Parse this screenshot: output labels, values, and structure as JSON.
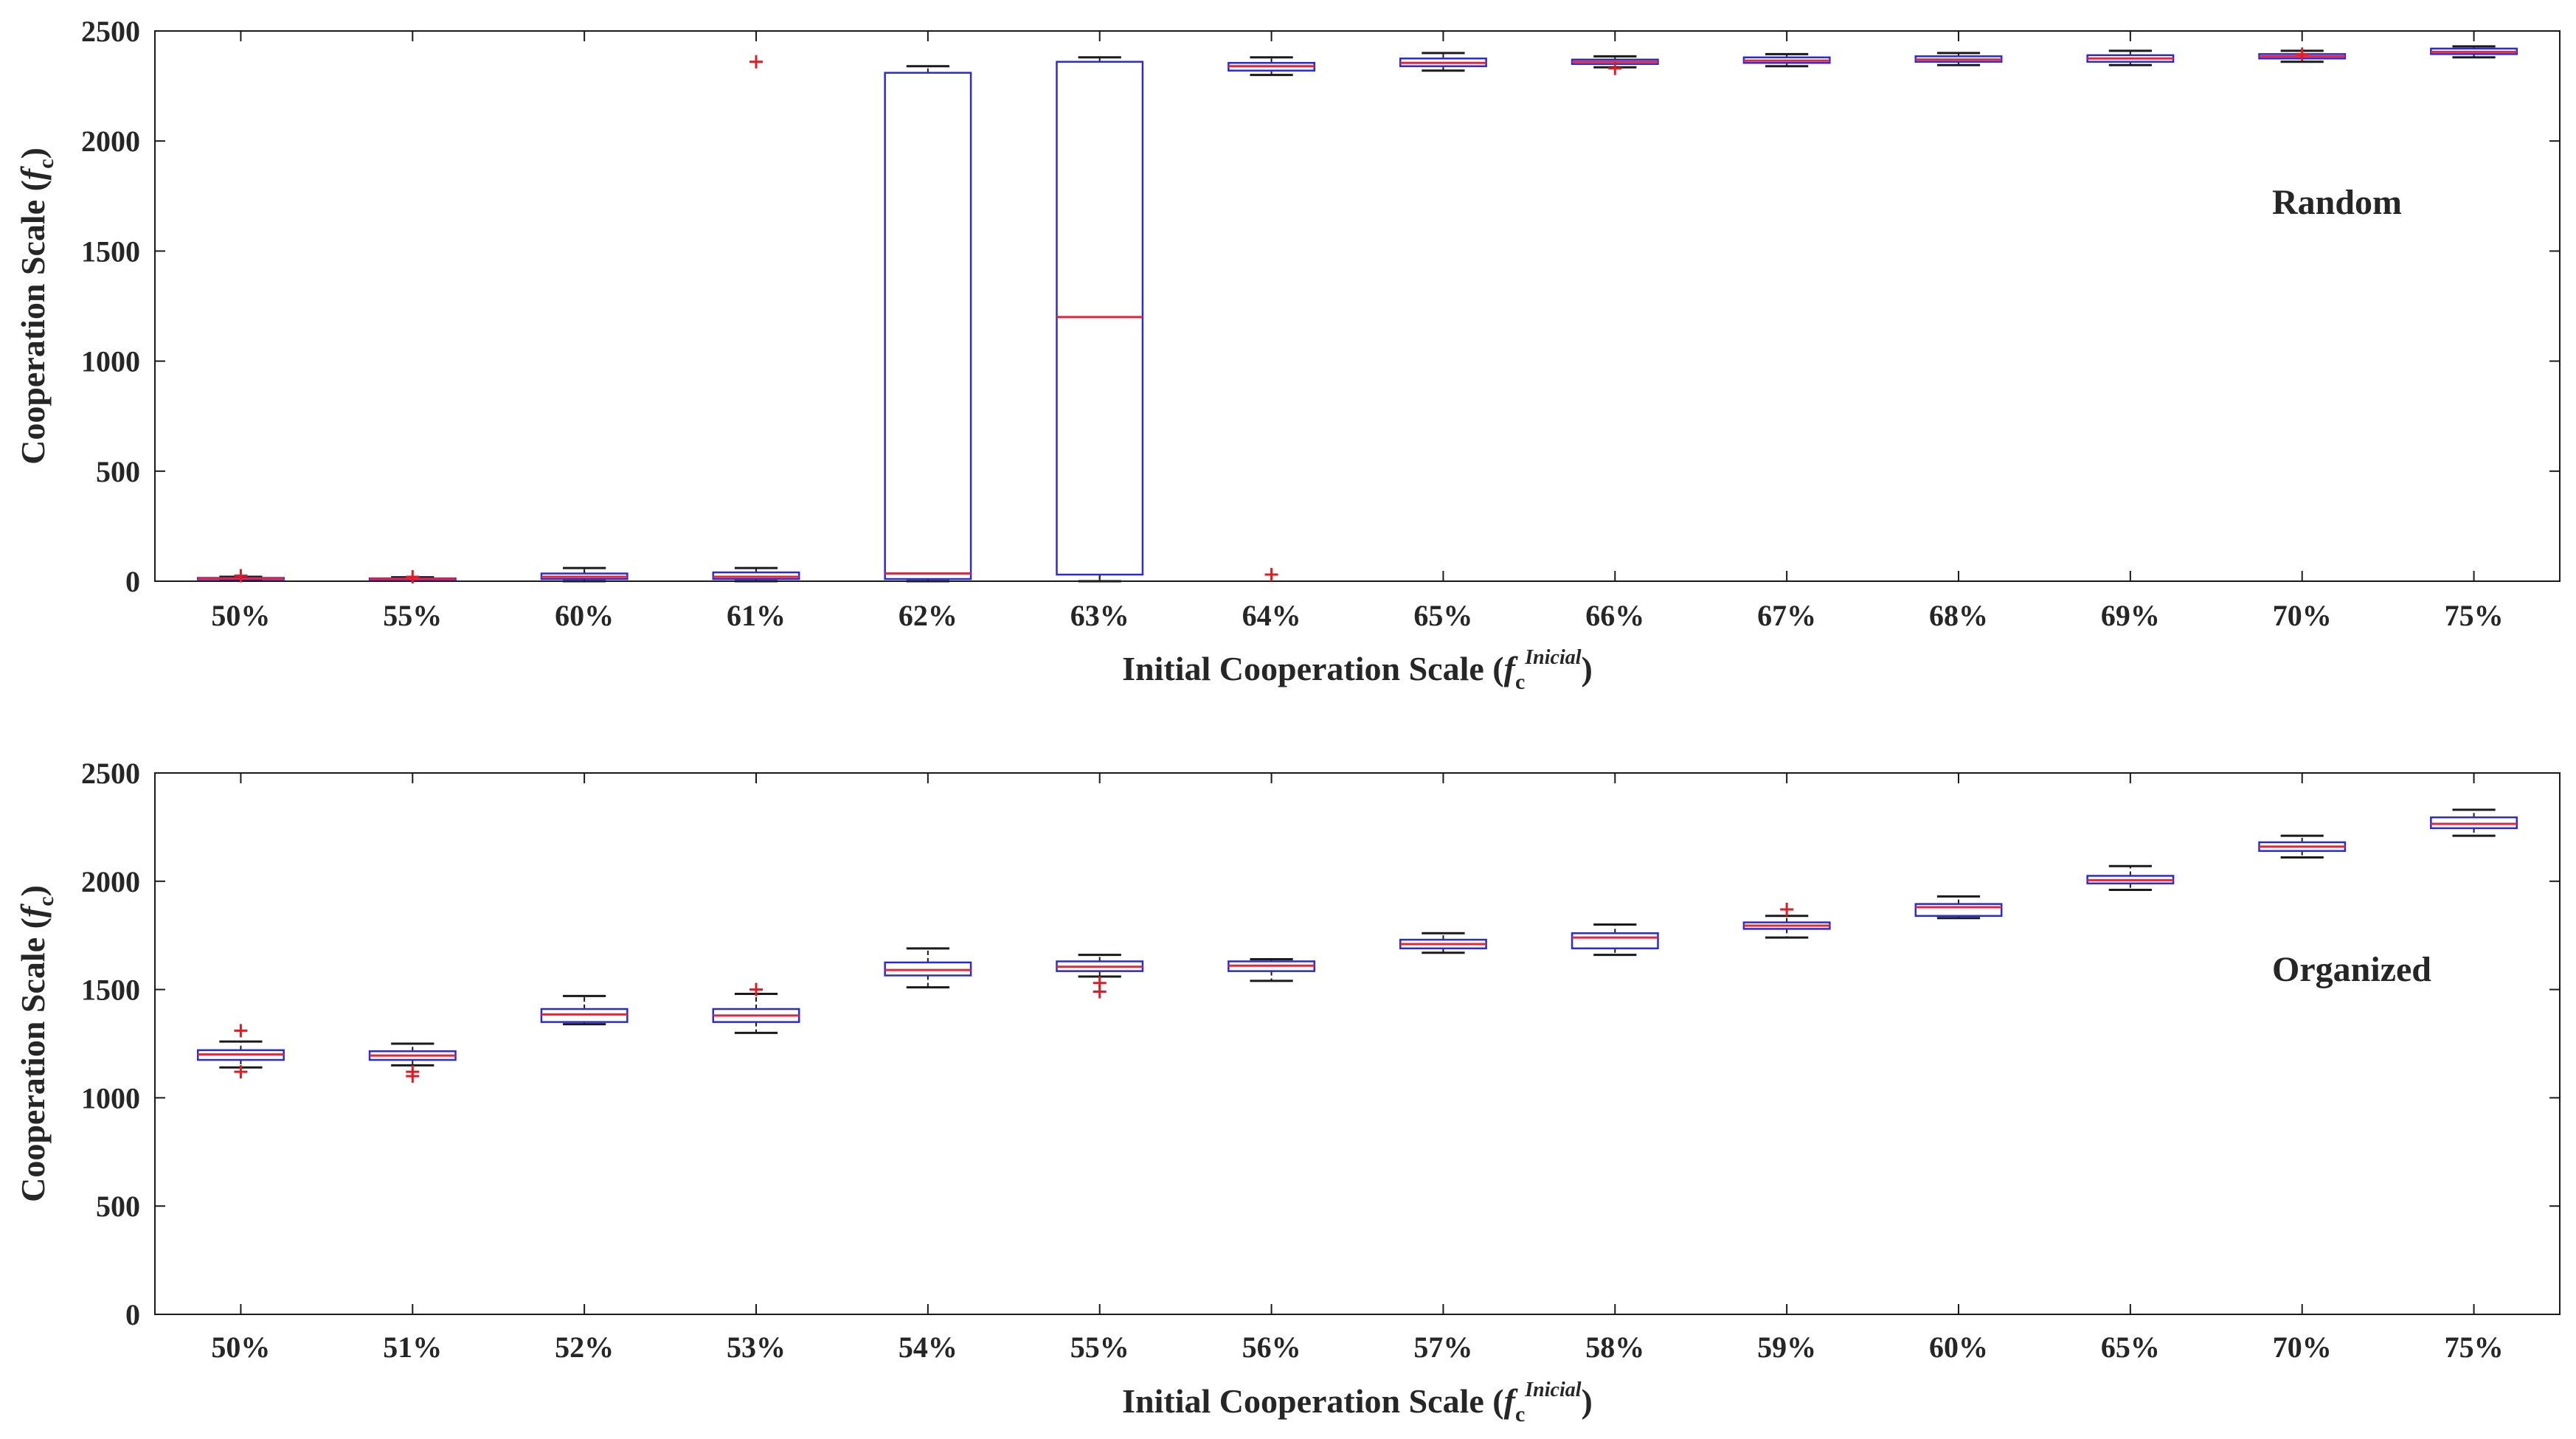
{
  "chart_data": [
    {
      "type": "box",
      "annotation": "Random",
      "ylabel": "Cooperation Scale (fc)",
      "ylabel_parts": [
        "Cooperation Scale (",
        "f",
        "c",
        ")"
      ],
      "xlabel": "Initial Cooperation Scale (fcInicial)",
      "xlabel_parts": [
        "Initial Cooperation Scale (",
        "f",
        "c",
        "Inicial",
        ")"
      ],
      "ylim": [
        0,
        2500
      ],
      "yticks": [
        "0",
        "500",
        "1000",
        "1500",
        "2000",
        "2500"
      ],
      "yticks_values": [
        0,
        500,
        1000,
        1500,
        2000,
        2500
      ],
      "categories": [
        "50%",
        "55%",
        "60%",
        "61%",
        "62%",
        "63%",
        "64%",
        "65%",
        "66%",
        "67%",
        "68%",
        "69%",
        "70%",
        "75%"
      ],
      "boxes": [
        {
          "q1": 10,
          "median": 12,
          "q3": 15,
          "whisker_low": 5,
          "whisker_high": 20,
          "outliers": [
            25
          ]
        },
        {
          "q1": 8,
          "median": 10,
          "q3": 13,
          "whisker_low": 5,
          "whisker_high": 18,
          "outliers": [
            20
          ]
        },
        {
          "q1": 10,
          "median": 20,
          "q3": 35,
          "whisker_low": 0,
          "whisker_high": 60,
          "outliers": []
        },
        {
          "q1": 10,
          "median": 20,
          "q3": 40,
          "whisker_low": 0,
          "whisker_high": 60,
          "outliers": [
            2360
          ]
        },
        {
          "q1": 10,
          "median": 35,
          "q3": 2310,
          "whisker_low": 0,
          "whisker_high": 2340,
          "outliers": []
        },
        {
          "q1": 30,
          "median": 1200,
          "q3": 2360,
          "whisker_low": 0,
          "whisker_high": 2380,
          "outliers": []
        },
        {
          "q1": 2320,
          "median": 2340,
          "q3": 2355,
          "whisker_low": 2300,
          "whisker_high": 2380,
          "outliers": [
            30
          ]
        },
        {
          "q1": 2340,
          "median": 2355,
          "q3": 2375,
          "whisker_low": 2320,
          "whisker_high": 2400,
          "outliers": []
        },
        {
          "q1": 2350,
          "median": 2360,
          "q3": 2370,
          "whisker_low": 2335,
          "whisker_high": 2385,
          "outliers": [
            2330
          ]
        },
        {
          "q1": 2355,
          "median": 2365,
          "q3": 2380,
          "whisker_low": 2340,
          "whisker_high": 2395,
          "outliers": []
        },
        {
          "q1": 2360,
          "median": 2370,
          "q3": 2385,
          "whisker_low": 2345,
          "whisker_high": 2400,
          "outliers": []
        },
        {
          "q1": 2360,
          "median": 2375,
          "q3": 2390,
          "whisker_low": 2345,
          "whisker_high": 2410,
          "outliers": []
        },
        {
          "q1": 2375,
          "median": 2385,
          "q3": 2395,
          "whisker_low": 2360,
          "whisker_high": 2410,
          "outliers": [
            2395
          ]
        },
        {
          "q1": 2395,
          "median": 2405,
          "q3": 2420,
          "whisker_low": 2380,
          "whisker_high": 2430,
          "outliers": []
        }
      ]
    },
    {
      "type": "box",
      "annotation": "Organized",
      "ylabel": "Cooperation Scale (fc)",
      "ylabel_parts": [
        "Cooperation Scale (",
        "f",
        "c",
        ")"
      ],
      "xlabel": "Initial Cooperation Scale (fcInicial)",
      "xlabel_parts": [
        "Initial Cooperation Scale (",
        "f",
        "c",
        "Inicial",
        ")"
      ],
      "ylim": [
        0,
        2500
      ],
      "yticks": [
        "0",
        "500",
        "1000",
        "1500",
        "2000",
        "2500"
      ],
      "yticks_values": [
        0,
        500,
        1000,
        1500,
        2000,
        2500
      ],
      "categories": [
        "50%",
        "51%",
        "52%",
        "53%",
        "54%",
        "55%",
        "56%",
        "57%",
        "58%",
        "59%",
        "60%",
        "65%",
        "70%",
        "75%"
      ],
      "boxes": [
        {
          "q1": 1175,
          "median": 1200,
          "q3": 1220,
          "whisker_low": 1140,
          "whisker_high": 1260,
          "outliers": [
            1310,
            1120
          ]
        },
        {
          "q1": 1175,
          "median": 1195,
          "q3": 1215,
          "whisker_low": 1150,
          "whisker_high": 1250,
          "outliers": [
            1120,
            1100
          ]
        },
        {
          "q1": 1350,
          "median": 1385,
          "q3": 1410,
          "whisker_low": 1340,
          "whisker_high": 1470,
          "outliers": []
        },
        {
          "q1": 1350,
          "median": 1380,
          "q3": 1410,
          "whisker_low": 1300,
          "whisker_high": 1480,
          "outliers": [
            1500
          ]
        },
        {
          "q1": 1565,
          "median": 1590,
          "q3": 1625,
          "whisker_low": 1510,
          "whisker_high": 1690,
          "outliers": []
        },
        {
          "q1": 1585,
          "median": 1605,
          "q3": 1630,
          "whisker_low": 1560,
          "whisker_high": 1660,
          "outliers": [
            1530,
            1490
          ]
        },
        {
          "q1": 1585,
          "median": 1610,
          "q3": 1630,
          "whisker_low": 1540,
          "whisker_high": 1640,
          "outliers": []
        },
        {
          "q1": 1690,
          "median": 1710,
          "q3": 1730,
          "whisker_low": 1670,
          "whisker_high": 1760,
          "outliers": []
        },
        {
          "q1": 1690,
          "median": 1740,
          "q3": 1760,
          "whisker_low": 1660,
          "whisker_high": 1800,
          "outliers": []
        },
        {
          "q1": 1780,
          "median": 1795,
          "q3": 1810,
          "whisker_low": 1740,
          "whisker_high": 1840,
          "outliers": [
            1870
          ]
        },
        {
          "q1": 1840,
          "median": 1880,
          "q3": 1895,
          "whisker_low": 1830,
          "whisker_high": 1930,
          "outliers": []
        },
        {
          "q1": 1990,
          "median": 2005,
          "q3": 2025,
          "whisker_low": 1960,
          "whisker_high": 2070,
          "outliers": []
        },
        {
          "q1": 2140,
          "median": 2160,
          "q3": 2180,
          "whisker_low": 2110,
          "whisker_high": 2210,
          "outliers": []
        },
        {
          "q1": 2245,
          "median": 2265,
          "q3": 2295,
          "whisker_low": 2210,
          "whisker_high": 2330,
          "outliers": []
        }
      ]
    }
  ],
  "colors": {
    "box": "#2b2bd6",
    "median": "#e8243a",
    "whisker": "#1a1a1a",
    "outlier": "#e01b24",
    "axis": "#1a1a1a",
    "text": "#262626",
    "median_overlay": "#7b2f8c"
  }
}
